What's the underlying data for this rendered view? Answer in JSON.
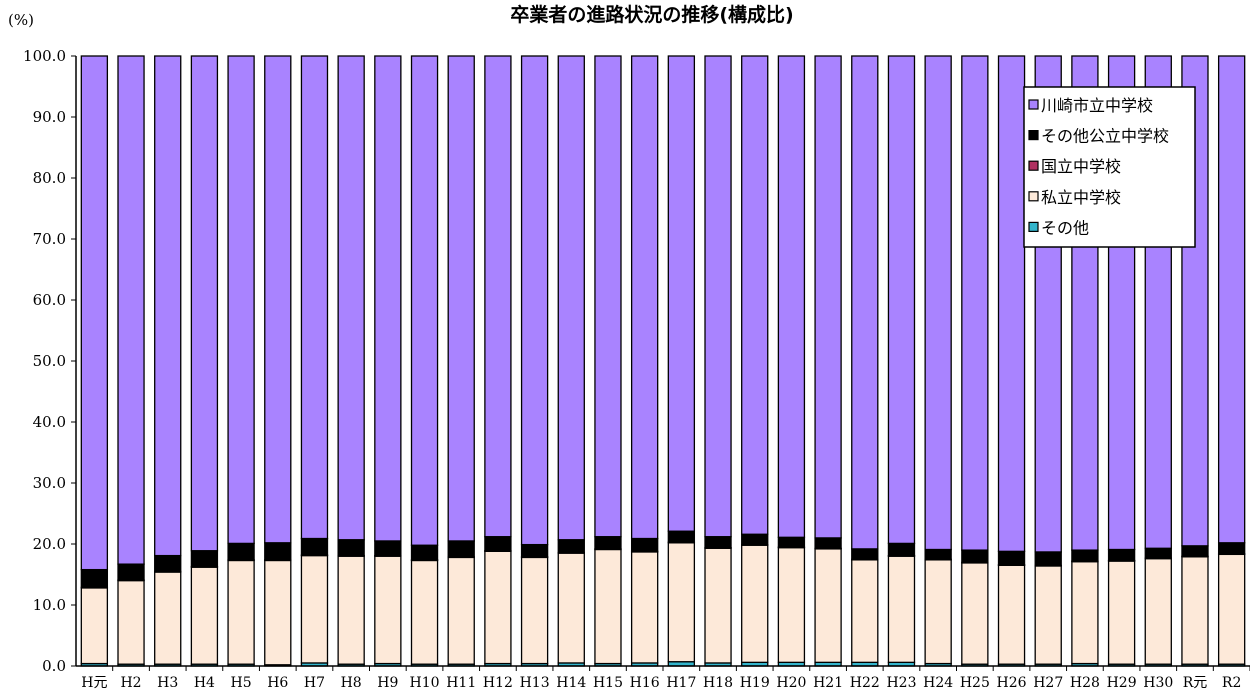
{
  "chart_data": {
    "type": "bar",
    "stacked": true,
    "title": "卒業者の進路状況の推移(構成比)",
    "ylabel": "(%)",
    "xlabel": "",
    "ylim": [
      0,
      100
    ],
    "yticks": [
      "0.0",
      "10.0",
      "20.0",
      "30.0",
      "40.0",
      "50.0",
      "60.0",
      "70.0",
      "80.0",
      "90.0",
      "100.0"
    ],
    "grid": false,
    "legend_position": "top-right",
    "categories": [
      "H元",
      "H2",
      "H3",
      "H4",
      "H5",
      "H6",
      "H7",
      "H8",
      "H9",
      "H10",
      "H11",
      "H12",
      "H13",
      "H14",
      "H15",
      "H16",
      "H17",
      "H18",
      "H19",
      "H20",
      "H21",
      "H22",
      "H23",
      "H24",
      "H25",
      "H26",
      "H27",
      "H28",
      "H29",
      "H30",
      "R元",
      "R2"
    ],
    "series": [
      {
        "name": "その他",
        "color": "#33b5cc",
        "values": [
          0.4,
          0.3,
          0.3,
          0.3,
          0.3,
          0.2,
          0.5,
          0.3,
          0.4,
          0.3,
          0.3,
          0.4,
          0.4,
          0.5,
          0.4,
          0.5,
          0.7,
          0.5,
          0.6,
          0.6,
          0.6,
          0.6,
          0.6,
          0.4,
          0.3,
          0.3,
          0.3,
          0.4,
          0.3,
          0.3,
          0.3,
          0.3
        ]
      },
      {
        "name": "私立中学校",
        "color": "#fde9d9",
        "values": [
          12.4,
          13.7,
          15.1,
          15.9,
          17.0,
          17.1,
          17.6,
          17.7,
          17.6,
          17.0,
          17.5,
          18.4,
          17.4,
          18.0,
          18.7,
          18.2,
          19.5,
          18.8,
          19.2,
          18.8,
          18.6,
          16.8,
          17.4,
          17.0,
          16.6,
          16.2,
          16.1,
          16.7,
          16.9,
          17.3,
          17.6,
          18.0
        ]
      },
      {
        "name": "国立中学校",
        "color": "#b03060",
        "values": [
          0.1,
          0.1,
          0.1,
          0.1,
          0.1,
          0.1,
          0.1,
          0.1,
          0.1,
          0.1,
          0.1,
          0.1,
          0.1,
          0.1,
          0.1,
          0.1,
          0.1,
          0.1,
          0.1,
          0.1,
          0.1,
          0.1,
          0.1,
          0.1,
          0.1,
          0.1,
          0.1,
          0.1,
          0.1,
          0.1,
          0.1,
          0.1
        ]
      },
      {
        "name": "その他公立中学校",
        "color": "#000000",
        "values": [
          2.9,
          2.6,
          2.6,
          2.6,
          2.7,
          2.8,
          2.7,
          2.6,
          2.4,
          2.4,
          2.6,
          2.3,
          2.0,
          2.1,
          2.0,
          2.1,
          1.8,
          1.8,
          1.7,
          1.6,
          1.7,
          1.7,
          2.0,
          1.6,
          2.0,
          2.2,
          2.2,
          1.8,
          1.8,
          1.6,
          1.7,
          1.8
        ]
      },
      {
        "name": "川崎市立中学校",
        "color": "#a983ff",
        "values": [
          84.2,
          83.3,
          81.9,
          81.1,
          79.9,
          79.8,
          79.1,
          79.3,
          79.5,
          80.2,
          79.5,
          78.8,
          80.1,
          79.3,
          78.8,
          79.1,
          77.9,
          78.8,
          78.4,
          78.9,
          79.0,
          80.8,
          79.9,
          80.9,
          81.0,
          81.2,
          81.3,
          81.0,
          80.9,
          80.7,
          80.3,
          79.8
        ]
      }
    ],
    "legend_order": [
      "川崎市立中学校",
      "その他公立中学校",
      "国立中学校",
      "私立中学校",
      "その他"
    ]
  }
}
